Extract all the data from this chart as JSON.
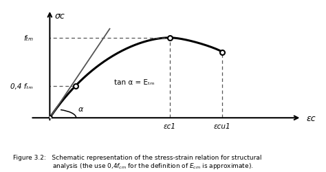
{
  "title": "Figure 3.2: Schematic representation of the stress-strain relation for structural\n          analysis (the use 0,4fcm for the definition of Ecm is approximate).",
  "figure_caption": "Figure 3.2:",
  "caption_text": "Schematic representation of the stress-strain relation for structural\nanalysis (the use 0,4fₜₘ for the definition of Eₜₘ is approximate).",
  "sigma_label": "σc",
  "epsilon_label": "εc",
  "fcm_label": "fₜₘ",
  "fcm_val": 1.0,
  "pt04_label": "0,4 fₜₘ",
  "pt04_val": 0.4,
  "ec1_label": "εc1",
  "ec1_val": 0.5,
  "ecu1_label": "εcu1",
  "ecu1_val": 0.72,
  "tan_alpha_label": "tan α = Eₜₘ",
  "alpha_label": "α",
  "background_color": "#ffffff",
  "curve_color": "#000000",
  "dashed_color": "#555555",
  "tangent_color": "#555555",
  "axis_color": "#000000",
  "text_color": "#000000",
  "open_circle_color": "#ffffff"
}
